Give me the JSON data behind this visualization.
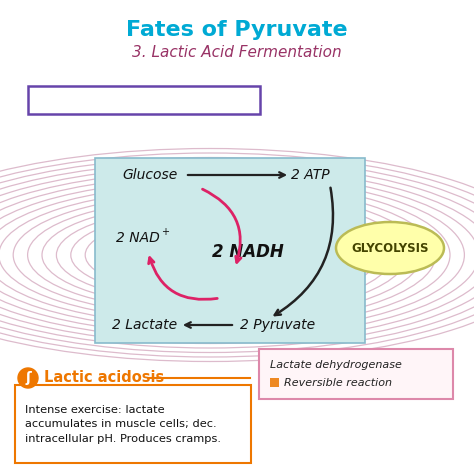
{
  "title_main": "Fates of Pyruvate",
  "title_sub": "3. Lactic Acid Fermentation",
  "title_main_color": "#00aad4",
  "title_sub_color": "#993366",
  "bg_color": "#ffffff",
  "muscle_label_color": "#6644aa",
  "muscle_label_rbc_color": "#cc2222",
  "cell_bg": "#cdeaea",
  "cell_border": "#88bbcc",
  "ellipse_lines_color": "#ddbbcc",
  "glycolysis_fill": "#ffffaa",
  "glycolysis_border": "#bbbb55",
  "glycolysis_text": "GLYCOLYSIS",
  "glycolysis_color": "#444400",
  "glucose_label": "Glucose",
  "atp_label": "2 ATP",
  "nad_label": "2 NAD",
  "nad_plus": "+",
  "nadh_label": "2 NADH",
  "lactate_label": "2 Lactate",
  "pyruvate_label": "2 Pyruvate",
  "arrow_pink_color": "#dd2266",
  "arrow_black_color": "#222222",
  "lactic_acidosis_title": "Lactic acidosis",
  "lactic_acidosis_title_color": "#ee7700",
  "lactic_acidosis_text": "Intense exercise: lactate\naccumulates in muscle cells; dec.\nintracellular pH. Produces cramps.",
  "lactic_acidosis_box_color": "#ee7700",
  "legend_text1": "Lactate dehydrogenase",
  "legend_text2": "Reversible reaction",
  "legend_box_edge": "#dd88aa",
  "legend_box_fill": "#fff5f8",
  "legend_square_color": "#ee8822"
}
